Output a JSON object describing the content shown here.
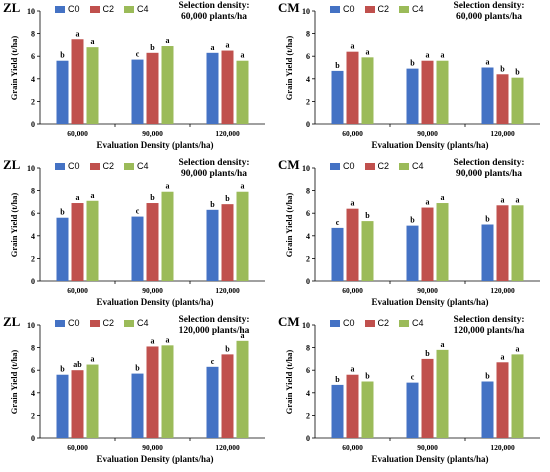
{
  "chart_data": [
    {
      "type": "bar",
      "panel_label": "ZL",
      "selection_title": [
        "Selection density:",
        "60,000 plants/ha"
      ],
      "categories": [
        "60,000",
        "90,000",
        "120,000"
      ],
      "xlabel": "Evaluation Density (plants/ha)",
      "ylabel": "Grain Yield (t/ha)",
      "ylim": [
        0,
        10
      ],
      "yticks": [
        0,
        2,
        4,
        6,
        8,
        10
      ],
      "legend_position": "top-left",
      "series": [
        {
          "name": "C0",
          "values": [
            5.6,
            5.7,
            6.3
          ],
          "letters": [
            "b",
            "c",
            "a"
          ]
        },
        {
          "name": "C2",
          "values": [
            7.5,
            6.3,
            6.5
          ],
          "letters": [
            "a",
            "b",
            "a"
          ]
        },
        {
          "name": "C4",
          "values": [
            6.8,
            6.9,
            5.6
          ],
          "letters": [
            "a",
            "a",
            "a"
          ]
        }
      ]
    },
    {
      "type": "bar",
      "panel_label": "CM",
      "selection_title": [
        "Selection density:",
        "60,000 plants/ha"
      ],
      "categories": [
        "60,000",
        "90,000",
        "120,000"
      ],
      "xlabel": "Evaluation Density (plants/ha)",
      "ylabel": "Grain Yield (t/ha)",
      "ylim": [
        0,
        10
      ],
      "yticks": [
        0,
        2,
        4,
        6,
        8,
        10
      ],
      "legend_position": "top-left",
      "series": [
        {
          "name": "C0",
          "values": [
            4.7,
            4.9,
            5.0
          ],
          "letters": [
            "b",
            "b",
            "a"
          ]
        },
        {
          "name": "C2",
          "values": [
            6.4,
            5.6,
            4.4
          ],
          "letters": [
            "a",
            "a",
            "b"
          ]
        },
        {
          "name": "C4",
          "values": [
            5.9,
            5.6,
            4.1
          ],
          "letters": [
            "a",
            "a",
            "b"
          ]
        }
      ]
    },
    {
      "type": "bar",
      "panel_label": "ZL",
      "selection_title": [
        "Selection density:",
        "90,000 plants/ha"
      ],
      "categories": [
        "60,000",
        "90,000",
        "120,000"
      ],
      "xlabel": "Evaluation Density (plants/ha)",
      "ylabel": "Grain Yield (t/ha)",
      "ylim": [
        0,
        10
      ],
      "yticks": [
        0,
        2,
        4,
        6,
        8,
        10
      ],
      "legend_position": "top-left",
      "series": [
        {
          "name": "C0",
          "values": [
            5.6,
            5.7,
            6.3
          ],
          "letters": [
            "b",
            "c",
            "b"
          ]
        },
        {
          "name": "C2",
          "values": [
            6.9,
            6.9,
            6.8
          ],
          "letters": [
            "a",
            "b",
            "b"
          ]
        },
        {
          "name": "C4",
          "values": [
            7.1,
            7.9,
            7.9
          ],
          "letters": [
            "a",
            "a",
            "a"
          ]
        }
      ]
    },
    {
      "type": "bar",
      "panel_label": "CM",
      "selection_title": [
        "Selection density:",
        "90,000 plants/ha"
      ],
      "categories": [
        "60,000",
        "90,000",
        "120,000"
      ],
      "xlabel": "Evaluation Density (plants/ha)",
      "ylabel": "Grain Yield (t/ha)",
      "ylim": [
        0,
        10
      ],
      "yticks": [
        0,
        2,
        4,
        6,
        8,
        10
      ],
      "legend_position": "top-left",
      "series": [
        {
          "name": "C0",
          "values": [
            4.7,
            4.9,
            5.0
          ],
          "letters": [
            "c",
            "b",
            "b"
          ]
        },
        {
          "name": "C2",
          "values": [
            6.4,
            6.5,
            6.7
          ],
          "letters": [
            "a",
            "a",
            "a"
          ]
        },
        {
          "name": "C4",
          "values": [
            5.3,
            6.9,
            6.7
          ],
          "letters": [
            "b",
            "a",
            "a"
          ]
        }
      ]
    },
    {
      "type": "bar",
      "panel_label": "ZL",
      "selection_title": [
        "Selection density:",
        "120,000 plants/ha"
      ],
      "categories": [
        "60,000",
        "90,000",
        "120,000"
      ],
      "xlabel": "Evaluation Density (plants/ha)",
      "ylabel": "Grain Yield (t/ha)",
      "ylim": [
        0,
        10
      ],
      "yticks": [
        0,
        2,
        4,
        6,
        8,
        10
      ],
      "legend_position": "top-left",
      "series": [
        {
          "name": "C0",
          "values": [
            5.6,
            5.7,
            6.3
          ],
          "letters": [
            "b",
            "b",
            "c"
          ]
        },
        {
          "name": "C2",
          "values": [
            6.0,
            8.1,
            7.4
          ],
          "letters": [
            "ab",
            "a",
            "b"
          ]
        },
        {
          "name": "C4",
          "values": [
            6.5,
            8.2,
            8.6
          ],
          "letters": [
            "a",
            "a",
            "a"
          ]
        }
      ]
    },
    {
      "type": "bar",
      "panel_label": "CM",
      "selection_title": [
        "Selection density:",
        "120,000 plants/ha"
      ],
      "categories": [
        "60,000",
        "90,000",
        "120,000"
      ],
      "xlabel": "Evaluation Density (plants/ha)",
      "ylabel": "Grain Yield (t/ha)",
      "ylim": [
        0,
        10
      ],
      "yticks": [
        0,
        2,
        4,
        6,
        8,
        10
      ],
      "legend_position": "top-left",
      "series": [
        {
          "name": "C0",
          "values": [
            4.7,
            4.9,
            5.0
          ],
          "letters": [
            "b",
            "c",
            "b"
          ]
        },
        {
          "name": "C2",
          "values": [
            5.6,
            7.0,
            6.7
          ],
          "letters": [
            "a",
            "b",
            "a"
          ]
        },
        {
          "name": "C4",
          "values": [
            5.0,
            7.8,
            7.4
          ],
          "letters": [
            "b",
            "a",
            "a"
          ]
        }
      ]
    }
  ],
  "colors": {
    "C0": "#4472c4",
    "C2": "#c0504d",
    "C4": "#9bbb59"
  }
}
